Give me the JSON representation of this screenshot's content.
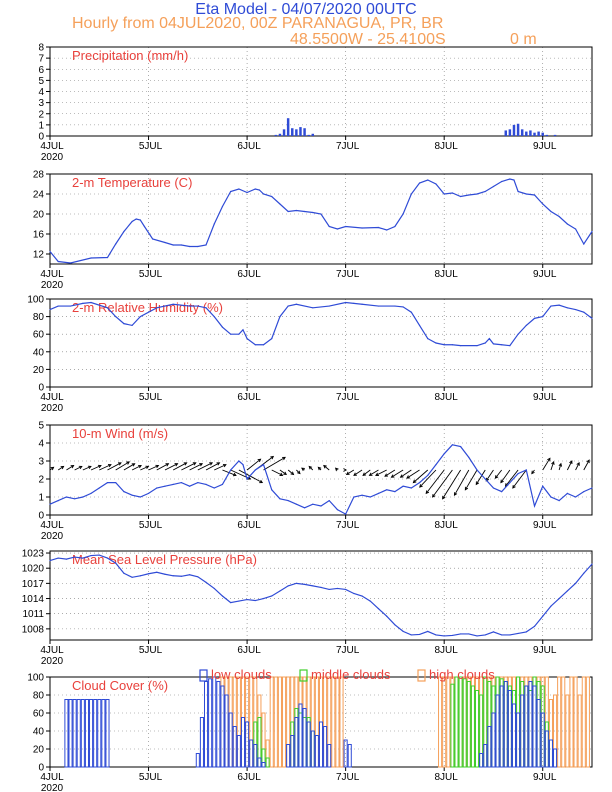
{
  "header": {
    "title": "Eta Model - 04/07/2020 00UTC",
    "subtitle": "Hourly from 04JUL2020, 00Z  PARANAGUA, PR, BR",
    "coords": "48.5500W - 25.4100S",
    "elevation": "0   m"
  },
  "x_axis": {
    "labels": [
      "4JUL",
      "5JUL",
      "6JUL",
      "7JUL",
      "8JUL",
      "9JUL"
    ],
    "label_hours": [
      0,
      24,
      48,
      72,
      96,
      120
    ],
    "year": "2020",
    "hours_total": 132
  },
  "colors": {
    "series": "#2f4bd6",
    "title": "#e8413c",
    "header_blue": "#2f4bd6",
    "header_orange": "#f5a05a",
    "low": "#2f4bd6",
    "mid": "#3fcf2c",
    "high": "#f5a05a"
  },
  "chart_data": [
    {
      "type": "bar",
      "title": "Precipitation (mm/h)",
      "ylim": [
        0,
        8
      ],
      "yticks": [
        "0",
        "1",
        "2",
        "3",
        "4",
        "5",
        "6",
        "7",
        "8"
      ],
      "x_hours": [
        55,
        56,
        57,
        58,
        59,
        60,
        61,
        62,
        63,
        64,
        111,
        112,
        113,
        114,
        115,
        116,
        117,
        118,
        119,
        120,
        121,
        123
      ],
      "values": [
        0.1,
        0.2,
        0.6,
        1.6,
        0.7,
        0.6,
        0.8,
        0.7,
        0.1,
        0.2,
        0.5,
        0.6,
        1.0,
        1.1,
        0.6,
        0.4,
        0.5,
        0.3,
        0.4,
        0.3,
        0.1,
        0.1
      ]
    },
    {
      "type": "line",
      "title": "2-m Temperature (C)",
      "ylim": [
        10,
        28
      ],
      "yticks": [
        "12",
        "16",
        "20",
        "24",
        "28"
      ],
      "ytick_values": [
        12,
        16,
        20,
        24,
        28
      ],
      "x": [
        0,
        2,
        5,
        10,
        14,
        16,
        18,
        20,
        21,
        22,
        23,
        25,
        28,
        30,
        32,
        34,
        36,
        38,
        40,
        42,
        43,
        44,
        46,
        48,
        50,
        51,
        52,
        54,
        56,
        58,
        60,
        62,
        64,
        66,
        68,
        70,
        72,
        76,
        80,
        82,
        84,
        86,
        88,
        90,
        92,
        94,
        96,
        98,
        100,
        102,
        104,
        106,
        108,
        110,
        112,
        113,
        114,
        116,
        118,
        120,
        122,
        124,
        126,
        128,
        130,
        132
      ],
      "values": [
        12.5,
        10.5,
        10.2,
        11.2,
        11.3,
        14.0,
        16.5,
        18.5,
        19.0,
        18.8,
        17.5,
        15.0,
        14.3,
        13.8,
        13.8,
        13.5,
        13.5,
        13.8,
        18.0,
        21.5,
        23.0,
        24.5,
        25.0,
        24.3,
        25.0,
        24.8,
        24.0,
        23.5,
        22.0,
        20.5,
        20.7,
        20.5,
        20.3,
        20.0,
        17.5,
        17.0,
        17.5,
        17.2,
        17.3,
        16.8,
        17.5,
        20.0,
        24.0,
        26.2,
        26.8,
        26.0,
        24.0,
        24.2,
        23.5,
        23.8,
        24.0,
        24.5,
        25.5,
        26.5,
        27.0,
        26.8,
        24.5,
        24.0,
        23.8,
        22.0,
        20.5,
        19.5,
        18.0,
        17.0,
        14.0,
        16.5
      ]
    },
    {
      "type": "line",
      "title": "2-m Relative Humidity (%)",
      "ylim": [
        0,
        100
      ],
      "yticks": [
        "0",
        "20",
        "40",
        "60",
        "80",
        "100"
      ],
      "ytick_values": [
        0,
        20,
        40,
        60,
        80,
        100
      ],
      "x": [
        0,
        2,
        5,
        8,
        10,
        14,
        16,
        18,
        20,
        22,
        26,
        30,
        34,
        36,
        38,
        40,
        42,
        44,
        46,
        47,
        48,
        50,
        52,
        54,
        56,
        58,
        60,
        64,
        68,
        72,
        74,
        76,
        80,
        84,
        86,
        88,
        90,
        92,
        94,
        96,
        98,
        100,
        104,
        106,
        107,
        108,
        110,
        112,
        114,
        116,
        118,
        120,
        122,
        124,
        126,
        128,
        130,
        132
      ],
      "values": [
        88,
        92,
        92,
        95,
        96,
        90,
        80,
        72,
        70,
        80,
        90,
        94,
        92,
        92,
        90,
        80,
        68,
        60,
        60,
        65,
        55,
        48,
        48,
        55,
        80,
        92,
        94,
        90,
        92,
        96,
        95,
        94,
        92,
        92,
        91,
        85,
        70,
        55,
        50,
        48,
        48,
        47,
        47,
        50,
        55,
        49,
        48,
        47,
        60,
        70,
        78,
        80,
        92,
        93,
        90,
        88,
        85,
        78
      ]
    },
    {
      "type": "line",
      "title": "10-m Wind (m/s)",
      "ylim": [
        0,
        5
      ],
      "yticks": [
        "0",
        "1",
        "2",
        "3",
        "4",
        "5"
      ],
      "ytick_values": [
        0,
        1,
        2,
        3,
        4,
        5
      ],
      "x": [
        0,
        2,
        4,
        6,
        8,
        10,
        12,
        14,
        16,
        18,
        20,
        22,
        24,
        26,
        28,
        30,
        32,
        34,
        36,
        38,
        40,
        42,
        44,
        46,
        47,
        48,
        50,
        52,
        54,
        56,
        58,
        60,
        62,
        64,
        66,
        68,
        70,
        72,
        74,
        76,
        78,
        80,
        82,
        84,
        86,
        88,
        90,
        92,
        94,
        96,
        98,
        100,
        102,
        104,
        106,
        108,
        110,
        112,
        114,
        116,
        118,
        120,
        122,
        124,
        126,
        128,
        130,
        132
      ],
      "values": [
        0.6,
        0.8,
        1.0,
        0.9,
        1.0,
        1.2,
        1.5,
        1.8,
        1.8,
        1.3,
        1.1,
        1.0,
        1.2,
        1.5,
        1.6,
        1.7,
        1.8,
        1.6,
        1.8,
        1.7,
        1.5,
        1.7,
        2.5,
        3.0,
        2.8,
        2.0,
        2.5,
        2.8,
        1.4,
        0.9,
        0.8,
        0.6,
        0.4,
        0.6,
        0.5,
        0.8,
        0.3,
        0.05,
        1.0,
        1.1,
        1.0,
        1.2,
        1.4,
        1.3,
        1.6,
        1.5,
        1.8,
        2.2,
        2.8,
        3.4,
        3.9,
        3.8,
        3.2,
        2.5,
        2.0,
        1.5,
        1.3,
        1.8,
        2.3,
        2.5,
        0.5,
        1.6,
        1.0,
        0.8,
        1.2,
        1.0,
        1.3,
        1.5
      ]
    },
    {
      "type": "line",
      "title": "Mean Sea Level Pressure (hPa)",
      "ylim": [
        1005.8,
        1023.4
      ],
      "yticks": [
        "1008",
        "1011",
        "1014",
        "1017",
        "1020",
        "1023"
      ],
      "ytick_values": [
        1008,
        1011,
        1014,
        1017,
        1020,
        1023
      ],
      "x": [
        0,
        2,
        4,
        6,
        8,
        10,
        12,
        14,
        16,
        18,
        20,
        22,
        24,
        26,
        28,
        30,
        32,
        34,
        36,
        38,
        40,
        42,
        44,
        46,
        48,
        50,
        52,
        54,
        56,
        58,
        60,
        62,
        64,
        66,
        68,
        70,
        72,
        74,
        76,
        78,
        80,
        82,
        84,
        86,
        88,
        90,
        92,
        94,
        96,
        98,
        100,
        102,
        104,
        106,
        108,
        110,
        112,
        114,
        116,
        118,
        120,
        122,
        124,
        126,
        128,
        130,
        132
      ],
      "values": [
        1021.5,
        1022.0,
        1021.8,
        1022.2,
        1022.0,
        1022.5,
        1022.6,
        1022.0,
        1021.0,
        1019.0,
        1018.2,
        1018.5,
        1018.9,
        1019.2,
        1018.8,
        1018.5,
        1018.4,
        1018.7,
        1018.3,
        1017.2,
        1016.0,
        1014.5,
        1013.2,
        1013.5,
        1013.8,
        1013.6,
        1014.0,
        1014.5,
        1015.5,
        1016.5,
        1017.0,
        1016.8,
        1016.5,
        1016.2,
        1015.8,
        1016.0,
        1015.8,
        1015.0,
        1014.5,
        1013.5,
        1012.0,
        1010.5,
        1008.8,
        1007.5,
        1006.8,
        1006.9,
        1007.5,
        1006.8,
        1006.6,
        1006.7,
        1007.0,
        1007.0,
        1006.6,
        1006.8,
        1007.4,
        1006.8,
        1006.8,
        1007.1,
        1007.4,
        1008.5,
        1010.5,
        1012.5,
        1014.0,
        1015.5,
        1017.0,
        1019.0,
        1020.8
      ]
    },
    {
      "type": "bar",
      "title": "Cloud Cover (%)",
      "legend": [
        "low clouds",
        "middle clouds",
        "high clouds"
      ],
      "ylim": [
        0,
        100
      ],
      "yticks": [
        "0",
        "20",
        "40",
        "60",
        "80",
        "100"
      ],
      "ytick_values": [
        0,
        20,
        40,
        60,
        80,
        100
      ],
      "series": [
        {
          "name": "low clouds",
          "x_hours": [
            4,
            5,
            6,
            7,
            8,
            9,
            10,
            11,
            12,
            13,
            14,
            36,
            37,
            38,
            39,
            40,
            41,
            42,
            43,
            44,
            45,
            46,
            47,
            48,
            49,
            50,
            51,
            52,
            58,
            59,
            60,
            61,
            62,
            63,
            64,
            65,
            66,
            67,
            68,
            72,
            73,
            105,
            106,
            107,
            108,
            109,
            110,
            111,
            112,
            113,
            114,
            115,
            116,
            117,
            118,
            119,
            120,
            121,
            122,
            123
          ],
          "values": [
            75,
            75,
            75,
            75,
            75,
            75,
            75,
            75,
            75,
            75,
            75,
            15,
            55,
            95,
            98,
            100,
            95,
            90,
            80,
            60,
            45,
            35,
            55,
            50,
            30,
            25,
            10,
            5,
            25,
            35,
            55,
            70,
            65,
            50,
            40,
            35,
            50,
            45,
            25,
            30,
            25,
            15,
            25,
            45,
            60,
            80,
            90,
            95,
            85,
            70,
            60,
            80,
            90,
            95,
            90,
            75,
            60,
            40,
            30,
            20
          ]
        },
        {
          "name": "middle clouds",
          "x_hours": [
            50,
            51,
            52,
            53,
            59,
            60,
            61,
            62,
            63,
            64,
            98,
            99,
            100,
            101,
            102,
            103,
            104,
            105,
            106,
            107,
            108,
            109,
            110,
            111,
            112,
            113,
            114,
            115,
            116,
            117,
            118,
            119,
            120,
            121,
            122
          ],
          "values": [
            50,
            55,
            20,
            10,
            50,
            65,
            60,
            55,
            55,
            40,
            92,
            100,
            100,
            98,
            95,
            90,
            85,
            80,
            100,
            95,
            90,
            100,
            98,
            95,
            90,
            85,
            100,
            95,
            90,
            85,
            100,
            95,
            90,
            50,
            30
          ]
        },
        {
          "name": "high clouds",
          "x_hours": [
            42,
            43,
            44,
            45,
            46,
            47,
            48,
            49,
            50,
            51,
            52,
            53,
            54,
            55,
            56,
            57,
            58,
            59,
            60,
            61,
            62,
            63,
            64,
            65,
            66,
            67,
            68,
            69,
            70,
            71,
            95,
            96,
            97,
            98,
            99,
            100,
            101,
            102,
            103,
            104,
            105,
            106,
            107,
            108,
            109,
            110,
            111,
            112,
            113,
            114,
            115,
            116,
            117,
            118,
            119,
            120,
            121,
            122,
            123,
            124,
            125,
            126,
            127,
            128,
            129,
            130,
            131
          ],
          "values": [
            100,
            100,
            100,
            100,
            100,
            100,
            100,
            100,
            100,
            80,
            60,
            30,
            100,
            100,
            100,
            100,
            100,
            100,
            100,
            100,
            100,
            100,
            100,
            100,
            100,
            100,
            100,
            100,
            100,
            100,
            100,
            100,
            100,
            100,
            100,
            100,
            100,
            100,
            100,
            100,
            100,
            100,
            100,
            100,
            100,
            100,
            100,
            100,
            100,
            100,
            100,
            100,
            100,
            100,
            100,
            100,
            100,
            75,
            80,
            100,
            100,
            80,
            100,
            100,
            80,
            100,
            100
          ]
        }
      ]
    }
  ],
  "wind_arrows": {
    "x_hours": [
      0,
      2,
      4,
      6,
      8,
      10,
      12,
      14,
      16,
      18,
      20,
      22,
      24,
      26,
      28,
      30,
      32,
      34,
      36,
      38,
      40,
      42,
      44,
      46,
      48,
      50,
      52,
      54,
      56,
      58,
      60,
      62,
      64,
      66,
      68,
      70,
      72,
      74,
      76,
      78,
      80,
      82,
      84,
      86,
      88,
      90,
      92,
      94,
      96,
      98,
      100,
      102,
      104,
      106,
      108,
      110,
      112,
      114,
      116,
      118,
      120,
      122,
      124,
      126,
      128,
      130
    ],
    "u": [
      0.4,
      0.6,
      0.8,
      0.8,
      0.9,
      1.1,
      1.3,
      1.5,
      1.5,
      1.2,
      1.0,
      0.9,
      1.1,
      1.3,
      1.4,
      1.5,
      1.6,
      1.4,
      1.6,
      1.5,
      1.3,
      1.5,
      2.2,
      2.6,
      1.5,
      2.0,
      2.4,
      1.2,
      0.7,
      0.6,
      0.4,
      -0.3,
      -0.4,
      -0.3,
      -0.6,
      -0.2,
      0.05,
      -0.8,
      -0.9,
      -0.8,
      -1.0,
      -1.2,
      -1.1,
      -1.3,
      -1.2,
      -1.4,
      -1.6,
      -1.8,
      -2.0,
      -2.2,
      -2.0,
      -1.6,
      -1.3,
      -1.0,
      -0.8,
      -0.7,
      -1.0,
      -1.4,
      -1.5,
      -0.3,
      0.8,
      0.3,
      0.2,
      0.5,
      0.4,
      0.6
    ],
    "v": [
      0.3,
      0.4,
      0.5,
      0.4,
      0.4,
      0.5,
      0.6,
      0.8,
      0.9,
      0.7,
      0.5,
      0.4,
      0.5,
      0.7,
      0.7,
      0.8,
      0.8,
      0.7,
      0.8,
      0.8,
      0.6,
      -0.6,
      -1.0,
      -1.4,
      1.2,
      1.5,
      1.4,
      -0.6,
      -0.5,
      -0.5,
      -0.4,
      0.2,
      0.4,
      0.3,
      0.5,
      0.2,
      0.0,
      -0.5,
      -0.6,
      -0.6,
      -0.6,
      -0.6,
      -0.7,
      -0.8,
      -0.8,
      -0.9,
      -1.4,
      -1.9,
      -2.6,
      -3.0,
      -3.2,
      -2.8,
      -2.2,
      -1.6,
      -1.2,
      -0.9,
      -1.4,
      -1.8,
      -2.0,
      -0.4,
      1.3,
      0.9,
      0.7,
      1.0,
      0.8,
      1.1
    ]
  }
}
